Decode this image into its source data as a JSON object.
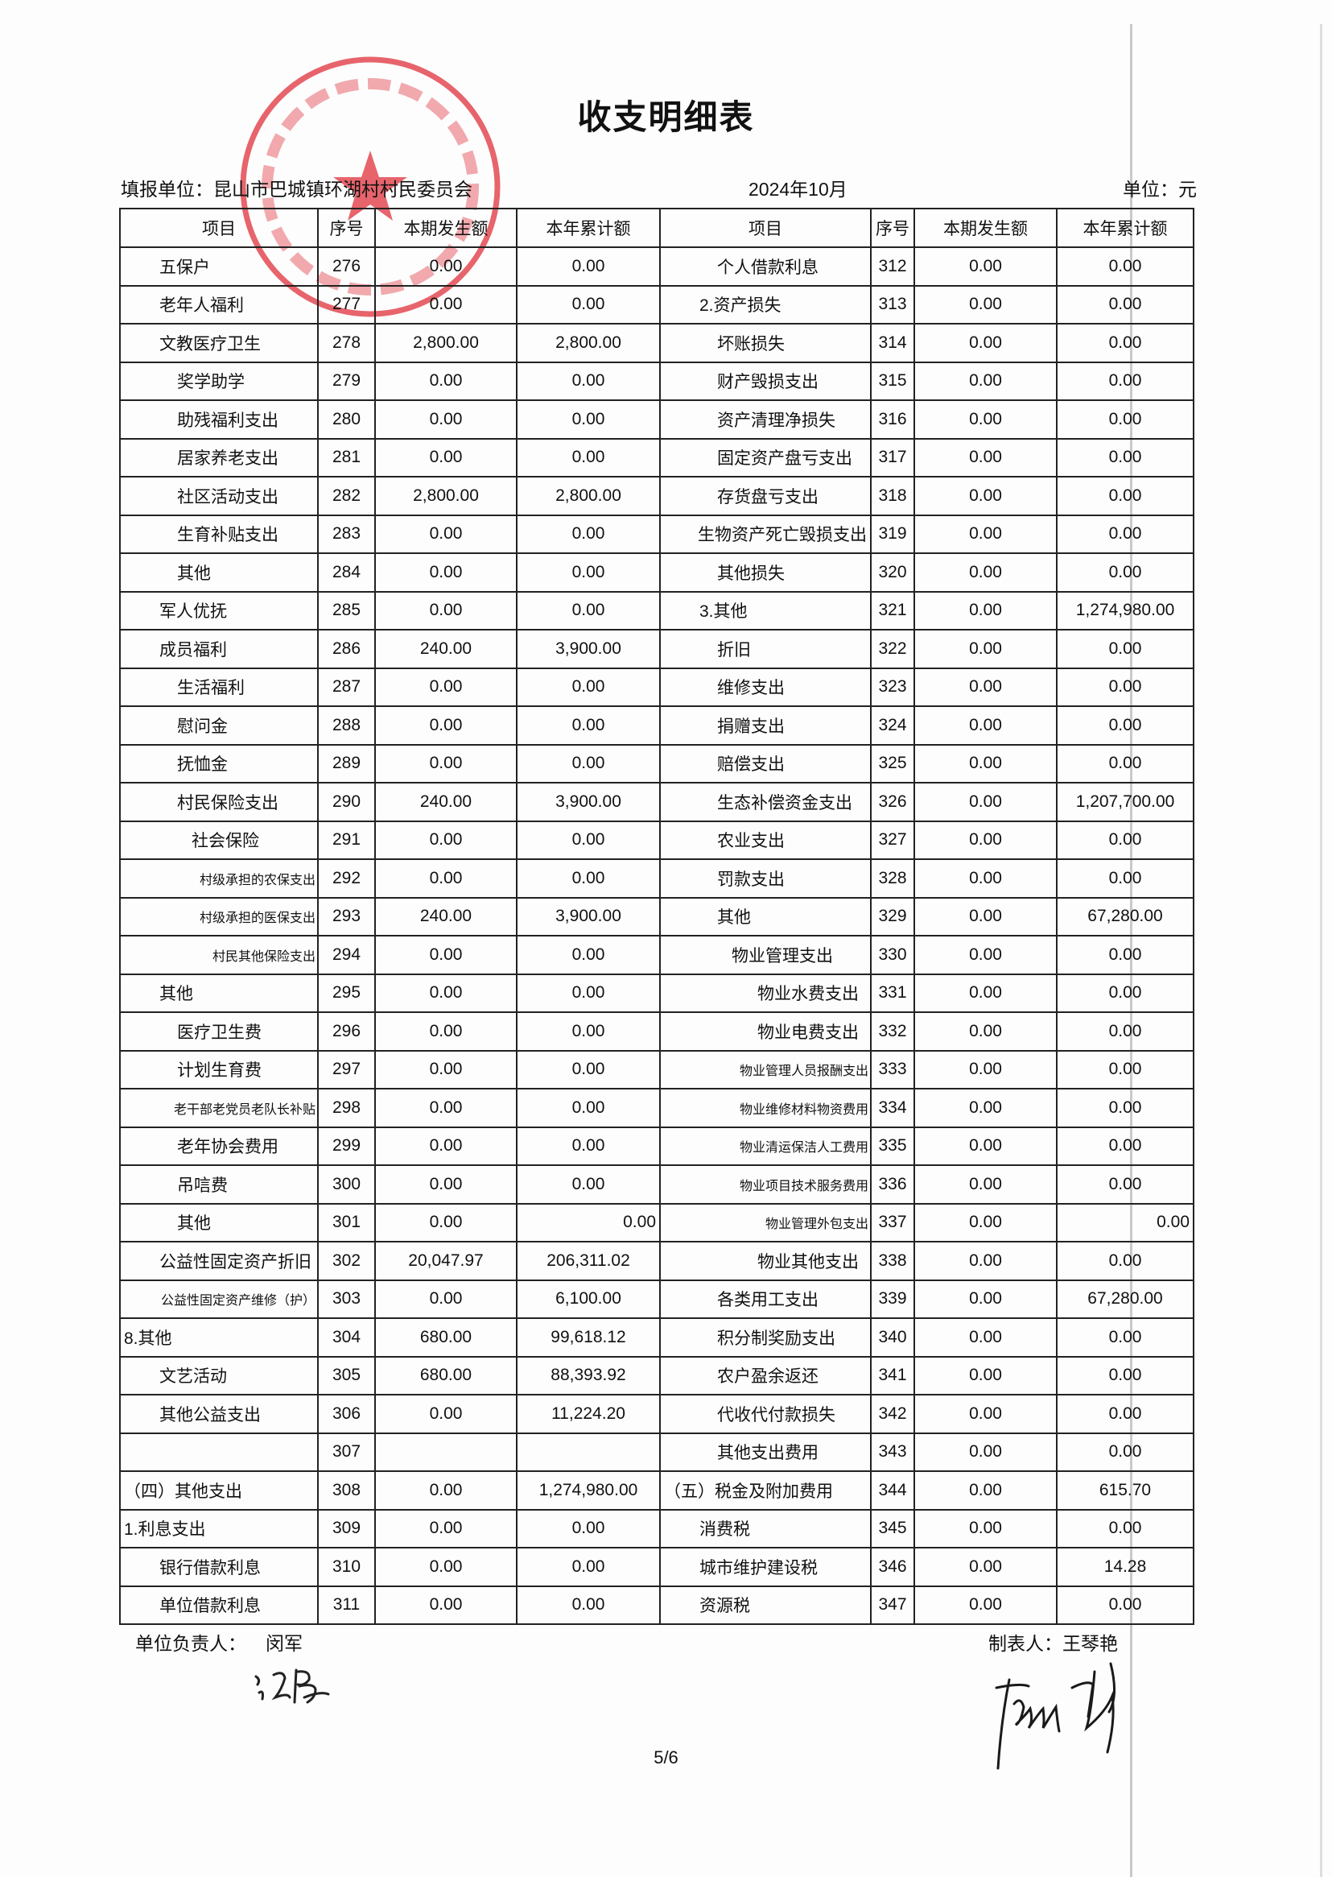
{
  "document": {
    "title": "收支明细表",
    "unit_label": "填报单位：昆山市巴城镇环湖村村民委员会",
    "period": "2024年10月",
    "currency_label": "单位：元",
    "page_number": "5/6"
  },
  "table": {
    "headers": [
      "项目",
      "序号",
      "本期发生额",
      "本年累计额",
      "项目",
      "序号",
      "本期发生额",
      "本年累计额"
    ],
    "rows": [
      {
        "l": {
          "item": "五保户",
          "level": 1,
          "seq": "276",
          "cur": "0.00",
          "ytd": "0.00"
        },
        "r": {
          "item": "个人借款利息",
          "level": 2,
          "seq": "312",
          "cur": "0.00",
          "ytd": "0.00"
        }
      },
      {
        "l": {
          "item": "老年人福利",
          "level": 1,
          "seq": "277",
          "cur": "0.00",
          "ytd": "0.00"
        },
        "r": {
          "item": "2.资产损失",
          "level": 1,
          "seq": "313",
          "cur": "0.00",
          "ytd": "0.00"
        }
      },
      {
        "l": {
          "item": "文教医疗卫生",
          "level": 1,
          "seq": "278",
          "cur": "2,800.00",
          "ytd": "2,800.00"
        },
        "r": {
          "item": "坏账损失",
          "level": 2,
          "seq": "314",
          "cur": "0.00",
          "ytd": "0.00"
        }
      },
      {
        "l": {
          "item": "奖学助学",
          "level": 2,
          "seq": "279",
          "cur": "0.00",
          "ytd": "0.00"
        },
        "r": {
          "item": "财产毁损支出",
          "level": 2,
          "seq": "315",
          "cur": "0.00",
          "ytd": "0.00"
        }
      },
      {
        "l": {
          "item": "助残福利支出",
          "level": 2,
          "seq": "280",
          "cur": "0.00",
          "ytd": "0.00"
        },
        "r": {
          "item": "资产清理净损失",
          "level": 2,
          "seq": "316",
          "cur": "0.00",
          "ytd": "0.00"
        }
      },
      {
        "l": {
          "item": "居家养老支出",
          "level": 2,
          "seq": "281",
          "cur": "0.00",
          "ytd": "0.00"
        },
        "r": {
          "item": "固定资产盘亏支出",
          "level": 2,
          "seq": "317",
          "cur": "0.00",
          "ytd": "0.00"
        }
      },
      {
        "l": {
          "item": "社区活动支出",
          "level": 2,
          "seq": "282",
          "cur": "2,800.00",
          "ytd": "2,800.00"
        },
        "r": {
          "item": "存货盘亏支出",
          "level": 2,
          "seq": "318",
          "cur": "0.00",
          "ytd": "0.00"
        }
      },
      {
        "l": {
          "item": "生育补贴支出",
          "level": 2,
          "seq": "283",
          "cur": "0.00",
          "ytd": "0.00"
        },
        "r": {
          "item": "生物资产死亡毁损支出",
          "level": 2,
          "seq": "319",
          "cur": "0.00",
          "ytd": "0.00"
        }
      },
      {
        "l": {
          "item": "其他",
          "level": 2,
          "seq": "284",
          "cur": "0.00",
          "ytd": "0.00"
        },
        "r": {
          "item": "其他损失",
          "level": 2,
          "seq": "320",
          "cur": "0.00",
          "ytd": "0.00"
        }
      },
      {
        "l": {
          "item": "军人优抚",
          "level": 1,
          "seq": "285",
          "cur": "0.00",
          "ytd": "0.00"
        },
        "r": {
          "item": "3.其他",
          "level": 1,
          "seq": "321",
          "cur": "0.00",
          "ytd": "1,274,980.00"
        }
      },
      {
        "l": {
          "item": "成员福利",
          "level": 1,
          "seq": "286",
          "cur": "240.00",
          "ytd": "3,900.00"
        },
        "r": {
          "item": "折旧",
          "level": 2,
          "seq": "322",
          "cur": "0.00",
          "ytd": "0.00"
        }
      },
      {
        "l": {
          "item": "生活福利",
          "level": 2,
          "seq": "287",
          "cur": "0.00",
          "ytd": "0.00"
        },
        "r": {
          "item": "维修支出",
          "level": 2,
          "seq": "323",
          "cur": "0.00",
          "ytd": "0.00"
        }
      },
      {
        "l": {
          "item": "慰问金",
          "level": 2,
          "seq": "288",
          "cur": "0.00",
          "ytd": "0.00"
        },
        "r": {
          "item": "捐赠支出",
          "level": 2,
          "seq": "324",
          "cur": "0.00",
          "ytd": "0.00"
        }
      },
      {
        "l": {
          "item": "抚恤金",
          "level": 2,
          "seq": "289",
          "cur": "0.00",
          "ytd": "0.00"
        },
        "r": {
          "item": "赔偿支出",
          "level": 2,
          "seq": "325",
          "cur": "0.00",
          "ytd": "0.00"
        }
      },
      {
        "l": {
          "item": "村民保险支出",
          "level": 2,
          "seq": "290",
          "cur": "240.00",
          "ytd": "3,900.00"
        },
        "r": {
          "item": "生态补偿资金支出",
          "level": 2,
          "seq": "326",
          "cur": "0.00",
          "ytd": "1,207,700.00"
        }
      },
      {
        "l": {
          "item": "社会保险",
          "level": 3,
          "seq": "291",
          "cur": "0.00",
          "ytd": "0.00"
        },
        "r": {
          "item": "农业支出",
          "level": 2,
          "seq": "327",
          "cur": "0.00",
          "ytd": "0.00"
        }
      },
      {
        "l": {
          "item": "村级承担的农保支出",
          "level": 3,
          "seq": "292",
          "cur": "0.00",
          "ytd": "0.00"
        },
        "r": {
          "item": "罚款支出",
          "level": 2,
          "seq": "328",
          "cur": "0.00",
          "ytd": "0.00"
        }
      },
      {
        "l": {
          "item": "村级承担的医保支出",
          "level": 3,
          "seq": "293",
          "cur": "240.00",
          "ytd": "3,900.00"
        },
        "r": {
          "item": "其他",
          "level": 2,
          "seq": "329",
          "cur": "0.00",
          "ytd": "67,280.00"
        }
      },
      {
        "l": {
          "item": "村民其他保险支出",
          "level": 3,
          "seq": "294",
          "cur": "0.00",
          "ytd": "0.00"
        },
        "r": {
          "item": "物业管理支出",
          "level": 3,
          "seq": "330",
          "cur": "0.00",
          "ytd": "0.00"
        }
      },
      {
        "l": {
          "item": "其他",
          "level": 1,
          "seq": "295",
          "cur": "0.00",
          "ytd": "0.00"
        },
        "r": {
          "item": "物业水费支出",
          "level": 4,
          "seq": "331",
          "cur": "0.00",
          "ytd": "0.00"
        }
      },
      {
        "l": {
          "item": "医疗卫生费",
          "level": 2,
          "seq": "296",
          "cur": "0.00",
          "ytd": "0.00"
        },
        "r": {
          "item": "物业电费支出",
          "level": 4,
          "seq": "332",
          "cur": "0.00",
          "ytd": "0.00"
        }
      },
      {
        "l": {
          "item": "计划生育费",
          "level": 2,
          "seq": "297",
          "cur": "0.00",
          "ytd": "0.00"
        },
        "r": {
          "item": "物业管理人员报酬支出",
          "level": 4,
          "seq": "333",
          "cur": "0.00",
          "ytd": "0.00"
        }
      },
      {
        "l": {
          "item": "老干部老党员老队长补贴",
          "level": 2,
          "seq": "298",
          "cur": "0.00",
          "ytd": "0.00"
        },
        "r": {
          "item": "物业维修材料物资费用",
          "level": 4,
          "seq": "334",
          "cur": "0.00",
          "ytd": "0.00"
        }
      },
      {
        "l": {
          "item": "老年协会费用",
          "level": 2,
          "seq": "299",
          "cur": "0.00",
          "ytd": "0.00"
        },
        "r": {
          "item": "物业清运保洁人工费用",
          "level": 4,
          "seq": "335",
          "cur": "0.00",
          "ytd": "0.00"
        }
      },
      {
        "l": {
          "item": "吊唁费",
          "level": 2,
          "seq": "300",
          "cur": "0.00",
          "ytd": "0.00"
        },
        "r": {
          "item": "物业项目技术服务费用",
          "level": 4,
          "seq": "336",
          "cur": "0.00",
          "ytd": "0.00"
        }
      },
      {
        "l": {
          "item": "其他",
          "level": 2,
          "seq": "301",
          "cur": "0.00",
          "ytd": "0.00"
        },
        "r": {
          "item": "物业管理外包支出",
          "level": 4,
          "seq": "337",
          "cur": "0.00",
          "ytd": "0.00"
        }
      },
      {
        "l": {
          "item": "公益性固定资产折旧",
          "level": 1,
          "seq": "302",
          "cur": "20,047.97",
          "ytd": "206,311.02"
        },
        "r": {
          "item": "物业其他支出",
          "level": 4,
          "seq": "338",
          "cur": "0.00",
          "ytd": "0.00"
        }
      },
      {
        "l": {
          "item": "公益性固定资产维修（护）",
          "level": 1,
          "seq": "303",
          "cur": "0.00",
          "ytd": "6,100.00"
        },
        "r": {
          "item": "各类用工支出",
          "level": 2,
          "seq": "339",
          "cur": "0.00",
          "ytd": "67,280.00"
        }
      },
      {
        "l": {
          "item": "8.其他",
          "level": 0,
          "seq": "304",
          "cur": "680.00",
          "ytd": "99,618.12"
        },
        "r": {
          "item": "积分制奖励支出",
          "level": 2,
          "seq": "340",
          "cur": "0.00",
          "ytd": "0.00"
        }
      },
      {
        "l": {
          "item": "文艺活动",
          "level": 1,
          "seq": "305",
          "cur": "680.00",
          "ytd": "88,393.92"
        },
        "r": {
          "item": "农户盈余返还",
          "level": 2,
          "seq": "341",
          "cur": "0.00",
          "ytd": "0.00"
        }
      },
      {
        "l": {
          "item": "其他公益支出",
          "level": 1,
          "seq": "306",
          "cur": "0.00",
          "ytd": "11,224.20"
        },
        "r": {
          "item": "代收代付款损失",
          "level": 2,
          "seq": "342",
          "cur": "0.00",
          "ytd": "0.00"
        }
      },
      {
        "l": {
          "item": "",
          "level": 1,
          "seq": "307",
          "cur": "",
          "ytd": ""
        },
        "r": {
          "item": "其他支出费用",
          "level": 2,
          "seq": "343",
          "cur": "0.00",
          "ytd": "0.00"
        }
      },
      {
        "l": {
          "item": "（四）其他支出",
          "level": 0,
          "seq": "308",
          "cur": "0.00",
          "ytd": "1,274,980.00"
        },
        "r": {
          "item": "（五）税金及附加费用",
          "level": 0,
          "seq": "344",
          "cur": "0.00",
          "ytd": "615.70"
        }
      },
      {
        "l": {
          "item": "1.利息支出",
          "level": 0,
          "seq": "309",
          "cur": "0.00",
          "ytd": "0.00"
        },
        "r": {
          "item": "消费税",
          "level": 1,
          "seq": "345",
          "cur": "0.00",
          "ytd": "0.00"
        }
      },
      {
        "l": {
          "item": "银行借款利息",
          "level": 1,
          "seq": "310",
          "cur": "0.00",
          "ytd": "0.00"
        },
        "r": {
          "item": "城市维护建设税",
          "level": 1,
          "seq": "346",
          "cur": "0.00",
          "ytd": "14.28"
        }
      },
      {
        "l": {
          "item": "单位借款利息",
          "level": 1,
          "seq": "311",
          "cur": "0.00",
          "ytd": "0.00"
        },
        "r": {
          "item": "资源税",
          "level": 1,
          "seq": "347",
          "cur": "0.00",
          "ytd": "0.00"
        }
      }
    ]
  },
  "footer": {
    "leader_label": "单位负责人：",
    "leader_name": "闵军",
    "preparer_label": "制表人：王琴艳"
  },
  "stamp": {
    "text": "昆山市巴城镇环湖村村民委员会",
    "color": "#e0323c"
  },
  "colors": {
    "stamp": "#e0323c",
    "ink": "#111111"
  }
}
